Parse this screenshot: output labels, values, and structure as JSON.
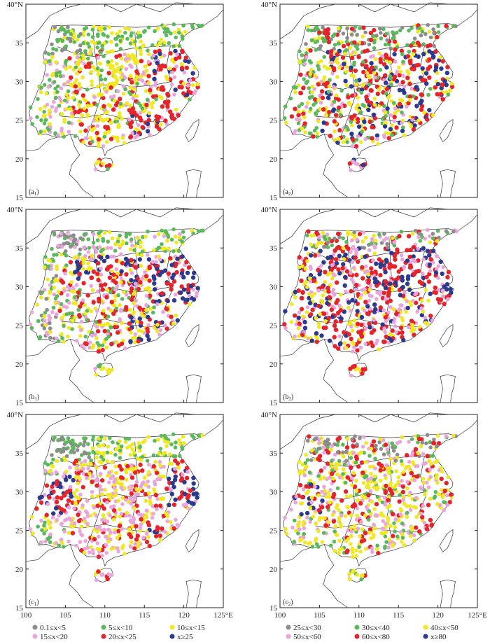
{
  "figure": {
    "lat_ticks": [
      "15",
      "20",
      "25",
      "30",
      "35",
      "40°N"
    ],
    "lon_ticks_left": [
      "100",
      "105",
      "110",
      "115",
      "120",
      "125°E"
    ],
    "lon_ticks_right": [
      "100",
      "105",
      "110",
      "115",
      "120",
      "125°E"
    ],
    "lat_range": [
      15,
      40
    ],
    "lon_range": [
      100,
      125
    ]
  },
  "panels": [
    {
      "id": "a1",
      "label_main": "(a",
      "label_sub": "1",
      "label_end": ")",
      "legend_set": "left"
    },
    {
      "id": "a2",
      "label_main": "(a",
      "label_sub": "2",
      "label_end": ")",
      "legend_set": "right"
    },
    {
      "id": "b1",
      "label_main": "(b",
      "label_sub": "1",
      "label_end": ")",
      "legend_set": "left"
    },
    {
      "id": "b2",
      "label_main": "(b",
      "label_sub": "2",
      "label_end": ")",
      "legend_set": "right"
    },
    {
      "id": "c1",
      "label_main": "(c",
      "label_sub": "1",
      "label_end": ")",
      "legend_set": "left"
    },
    {
      "id": "c2",
      "label_main": "(c",
      "label_sub": "2",
      "label_end": ")",
      "legend_set": "right"
    }
  ],
  "legend_left": [
    {
      "text": "0.1≤x<5",
      "color": "#8c8c8c"
    },
    {
      "text": "5≤x<10",
      "color": "#5cb85c"
    },
    {
      "text": "10≤x<15",
      "color": "#f0e822"
    },
    {
      "text": "15≤x<20",
      "color": "#e9a6dc"
    },
    {
      "text": "20≤x<25",
      "color": "#e3242b"
    },
    {
      "text": "x≥25",
      "color": "#2b3a8c"
    }
  ],
  "legend_right": [
    {
      "text": "25≤x<30",
      "color": "#8c8c8c"
    },
    {
      "text": "30≤x<40",
      "color": "#5cb85c"
    },
    {
      "text": "40≤x<50",
      "color": "#f0e822"
    },
    {
      "text": "50≤x<60",
      "color": "#e9a6dc"
    },
    {
      "text": "60≤x<80",
      "color": "#e3242b"
    },
    {
      "text": "x≥80",
      "color": "#2b3a8c"
    }
  ],
  "colors": {
    "gray": "#8c8c8c",
    "green": "#5cb85c",
    "yellow": "#f0e822",
    "pink": "#e9a6dc",
    "red": "#e3242b",
    "blue": "#2b3a8c",
    "frame": "#222222",
    "coast": "#333333"
  }
}
